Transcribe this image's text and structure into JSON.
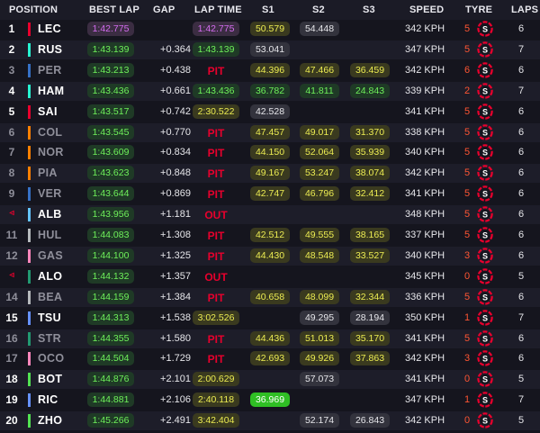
{
  "header": {
    "position": "POSITION",
    "best_lap": "BEST LAP",
    "gap": "GAP",
    "lap_time": "LAP TIME",
    "s1": "S1",
    "s2": "S2",
    "s3": "S3",
    "speed": "SPEED",
    "tyre": "TYRE",
    "laps": "LAPS"
  },
  "tyre_icon_letter": "S",
  "colors": {
    "background": "#15151e",
    "purple_sector": "#d46cf0",
    "green_sector": "#6ef05a",
    "yellow_sector": "#ecec52",
    "pit_out": "#e8002d",
    "soft_tyre": "#e8002d"
  },
  "rows": [
    {
      "pos": "1",
      "dim": false,
      "team_color": "#e8002d",
      "driver": "LEC",
      "best": "1:42.775",
      "best_c": "purple",
      "gap": "",
      "lap": "1:42.775",
      "lap_c": "purple",
      "status": "",
      "s1": "50.579",
      "s1_c": "yellow",
      "s2": "54.448",
      "s2_c": "grey",
      "s3": "",
      "s3_c": "",
      "speed": "342 KPH",
      "tyre": "5",
      "laps": "6"
    },
    {
      "pos": "2",
      "dim": false,
      "team_color": "#27f4d2",
      "driver": "RUS",
      "best": "1:43.139",
      "best_c": "green",
      "gap": "+0.364",
      "lap": "1:43.139",
      "lap_c": "green",
      "status": "",
      "s1": "53.041",
      "s1_c": "grey",
      "s2": "",
      "s2_c": "",
      "s3": "",
      "s3_c": "",
      "speed": "347 KPH",
      "tyre": "5",
      "laps": "7"
    },
    {
      "pos": "3",
      "dim": true,
      "team_color": "#3671c6",
      "driver": "PER",
      "best": "1:43.213",
      "best_c": "green",
      "gap": "+0.438",
      "lap": "",
      "lap_c": "",
      "status": "PIT",
      "s1": "44.396",
      "s1_c": "yellow",
      "s2": "47.466",
      "s2_c": "yellow",
      "s3": "36.459",
      "s3_c": "yellow",
      "speed": "342 KPH",
      "tyre": "6",
      "laps": "6"
    },
    {
      "pos": "4",
      "dim": false,
      "team_color": "#27f4d2",
      "driver": "HAM",
      "best": "1:43.436",
      "best_c": "green",
      "gap": "+0.661",
      "lap": "1:43.436",
      "lap_c": "green",
      "status": "",
      "s1": "36.782",
      "s1_c": "green",
      "s2": "41.811",
      "s2_c": "green",
      "s3": "24.843",
      "s3_c": "green",
      "speed": "339 KPH",
      "tyre": "2",
      "laps": "7"
    },
    {
      "pos": "5",
      "dim": false,
      "team_color": "#e8002d",
      "driver": "SAI",
      "best": "1:43.517",
      "best_c": "green",
      "gap": "+0.742",
      "lap": "2:30.522",
      "lap_c": "yellow",
      "status": "",
      "s1": "42.528",
      "s1_c": "grey",
      "s2": "",
      "s2_c": "",
      "s3": "",
      "s3_c": "",
      "speed": "341 KPH",
      "tyre": "5",
      "laps": "6"
    },
    {
      "pos": "6",
      "dim": true,
      "team_color": "#ff8000",
      "driver": "COL",
      "best": "1:43.545",
      "best_c": "green",
      "gap": "+0.770",
      "lap": "",
      "lap_c": "",
      "status": "PIT",
      "s1": "47.457",
      "s1_c": "yellow",
      "s2": "49.017",
      "s2_c": "yellow",
      "s3": "31.370",
      "s3_c": "yellow",
      "speed": "338 KPH",
      "tyre": "5",
      "laps": "6"
    },
    {
      "pos": "7",
      "dim": true,
      "team_color": "#ff8000",
      "driver": "NOR",
      "best": "1:43.609",
      "best_c": "green",
      "gap": "+0.834",
      "lap": "",
      "lap_c": "",
      "status": "PIT",
      "s1": "44.150",
      "s1_c": "yellow",
      "s2": "52.064",
      "s2_c": "yellow",
      "s3": "35.939",
      "s3_c": "yellow",
      "speed": "340 KPH",
      "tyre": "5",
      "laps": "6"
    },
    {
      "pos": "8",
      "dim": true,
      "team_color": "#ff8000",
      "driver": "PIA",
      "best": "1:43.623",
      "best_c": "green",
      "gap": "+0.848",
      "lap": "",
      "lap_c": "",
      "status": "PIT",
      "s1": "49.167",
      "s1_c": "yellow",
      "s2": "53.247",
      "s2_c": "yellow",
      "s3": "38.074",
      "s3_c": "yellow",
      "speed": "342 KPH",
      "tyre": "5",
      "laps": "6"
    },
    {
      "pos": "9",
      "dim": true,
      "team_color": "#3671c6",
      "driver": "VER",
      "best": "1:43.644",
      "best_c": "green",
      "gap": "+0.869",
      "lap": "",
      "lap_c": "",
      "status": "PIT",
      "s1": "42.747",
      "s1_c": "yellow",
      "s2": "46.796",
      "s2_c": "yellow",
      "s3": "32.412",
      "s3_c": "yellow",
      "speed": "341 KPH",
      "tyre": "5",
      "laps": "6"
    },
    {
      "pos": "◃",
      "dim": false,
      "out": true,
      "team_color": "#64c4ff",
      "driver": "ALB",
      "best": "1:43.956",
      "best_c": "green",
      "gap": "+1.181",
      "lap": "",
      "lap_c": "",
      "status": "OUT",
      "s1": "",
      "s1_c": "",
      "s2": "",
      "s2_c": "",
      "s3": "",
      "s3_c": "",
      "speed": "348 KPH",
      "tyre": "5",
      "laps": "6"
    },
    {
      "pos": "11",
      "dim": true,
      "team_color": "#b6babd",
      "driver": "HUL",
      "best": "1:44.083",
      "best_c": "green",
      "gap": "+1.308",
      "lap": "",
      "lap_c": "",
      "status": "PIT",
      "s1": "42.512",
      "s1_c": "yellow",
      "s2": "49.555",
      "s2_c": "yellow",
      "s3": "38.165",
      "s3_c": "yellow",
      "speed": "337 KPH",
      "tyre": "5",
      "laps": "6"
    },
    {
      "pos": "12",
      "dim": true,
      "team_color": "#ff87bc",
      "driver": "GAS",
      "best": "1:44.100",
      "best_c": "green",
      "gap": "+1.325",
      "lap": "",
      "lap_c": "",
      "status": "PIT",
      "s1": "44.430",
      "s1_c": "yellow",
      "s2": "48.548",
      "s2_c": "yellow",
      "s3": "33.527",
      "s3_c": "yellow",
      "speed": "340 KPH",
      "tyre": "3",
      "laps": "6"
    },
    {
      "pos": "◃",
      "dim": false,
      "out": true,
      "team_color": "#229971",
      "driver": "ALO",
      "best": "1:44.132",
      "best_c": "green",
      "gap": "+1.357",
      "lap": "",
      "lap_c": "",
      "status": "OUT",
      "s1": "",
      "s1_c": "",
      "s2": "",
      "s2_c": "",
      "s3": "",
      "s3_c": "",
      "speed": "345 KPH",
      "tyre": "0",
      "laps": "5"
    },
    {
      "pos": "14",
      "dim": true,
      "team_color": "#b6babd",
      "driver": "BEA",
      "best": "1:44.159",
      "best_c": "green",
      "gap": "+1.384",
      "lap": "",
      "lap_c": "",
      "status": "PIT",
      "s1": "40.658",
      "s1_c": "yellow",
      "s2": "48.099",
      "s2_c": "yellow",
      "s3": "32.344",
      "s3_c": "yellow",
      "speed": "336 KPH",
      "tyre": "5",
      "laps": "6"
    },
    {
      "pos": "15",
      "dim": false,
      "team_color": "#6692ff",
      "driver": "TSU",
      "best": "1:44.313",
      "best_c": "green",
      "gap": "+1.538",
      "lap": "3:02.526",
      "lap_c": "yellow",
      "status": "",
      "s1": "",
      "s1_c": "",
      "s2": "49.295",
      "s2_c": "grey",
      "s3": "28.194",
      "s3_c": "grey",
      "speed": "350 KPH",
      "tyre": "1",
      "laps": "7"
    },
    {
      "pos": "16",
      "dim": true,
      "team_color": "#229971",
      "driver": "STR",
      "best": "1:44.355",
      "best_c": "green",
      "gap": "+1.580",
      "lap": "",
      "lap_c": "",
      "status": "PIT",
      "s1": "44.436",
      "s1_c": "yellow",
      "s2": "51.013",
      "s2_c": "yellow",
      "s3": "35.170",
      "s3_c": "yellow",
      "speed": "341 KPH",
      "tyre": "5",
      "laps": "6"
    },
    {
      "pos": "17",
      "dim": true,
      "team_color": "#ff87bc",
      "driver": "OCO",
      "best": "1:44.504",
      "best_c": "green",
      "gap": "+1.729",
      "lap": "",
      "lap_c": "",
      "status": "PIT",
      "s1": "42.693",
      "s1_c": "yellow",
      "s2": "49.926",
      "s2_c": "yellow",
      "s3": "37.863",
      "s3_c": "yellow",
      "speed": "342 KPH",
      "tyre": "3",
      "laps": "6"
    },
    {
      "pos": "18",
      "dim": false,
      "team_color": "#52e252",
      "driver": "BOT",
      "best": "1:44.876",
      "best_c": "green",
      "gap": "+2.101",
      "lap": "2:00.629",
      "lap_c": "yellow",
      "status": "",
      "s1": "",
      "s1_c": "",
      "s2": "57.073",
      "s2_c": "grey",
      "s3": "",
      "s3_c": "",
      "speed": "341 KPH",
      "tyre": "0",
      "laps": "5"
    },
    {
      "pos": "19",
      "dim": false,
      "team_color": "#6692ff",
      "driver": "RIC",
      "best": "1:44.881",
      "best_c": "green",
      "gap": "+2.106",
      "lap": "2:40.118",
      "lap_c": "yellow",
      "status": "",
      "s1": "36.969",
      "s1_c": "solidgreen",
      "s2": "",
      "s2_c": "",
      "s3": "",
      "s3_c": "",
      "speed": "347 KPH",
      "tyre": "1",
      "laps": "7"
    },
    {
      "pos": "20",
      "dim": false,
      "team_color": "#52e252",
      "driver": "ZHO",
      "best": "1:45.266",
      "best_c": "green",
      "gap": "+2.491",
      "lap": "3:42.404",
      "lap_c": "yellow",
      "status": "",
      "s1": "",
      "s1_c": "",
      "s2": "52.174",
      "s2_c": "grey",
      "s3": "26.843",
      "s3_c": "grey",
      "speed": "342 KPH",
      "tyre": "0",
      "laps": "5"
    }
  ]
}
